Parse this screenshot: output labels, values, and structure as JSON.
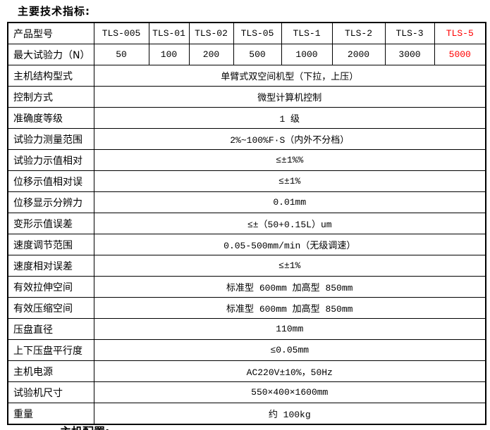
{
  "page": {
    "title": "主要技术指标:",
    "cutoff_heading": "主机配置:"
  },
  "colors": {
    "background": "#ffffff",
    "text": "#000000",
    "border": "#000000",
    "highlight_red": "#ff0000"
  },
  "table": {
    "model_row": {
      "label": "产品型号",
      "values": [
        "TLS-005",
        "TLS-01",
        "TLS-02",
        "TLS-05",
        "TLS-1",
        "TLS-2",
        "TLS-3",
        "TLS-5"
      ],
      "highlight_index": 7
    },
    "force_row": {
      "label": "最大试验力（N）",
      "values": [
        "50",
        "100",
        "200",
        "500",
        "1000",
        "2000",
        "3000",
        "5000"
      ],
      "highlight_index": 7
    },
    "spec_rows": [
      {
        "label": "主机结构型式",
        "value": "单臂式双空间机型（下拉，上压）"
      },
      {
        "label": "控制方式",
        "value": "微型计算机控制"
      },
      {
        "label": "准确度等级",
        "value": "1 级"
      },
      {
        "label": "试验力测量范围",
        "value": "2%~100%F·S（内外不分档）"
      },
      {
        "label": "试验力示值相对",
        "value": "≤±1%%"
      },
      {
        "label": "位移示值相对误",
        "value": "≤±1%"
      },
      {
        "label": "位移显示分辨力",
        "value": "0.01mm"
      },
      {
        "label": "变形示值误差",
        "value": "≤±（50+0.15L）um"
      },
      {
        "label": "速度调节范围",
        "value": "0.05-500mm/min（无级调速）"
      },
      {
        "label": "速度相对误差",
        "value": "≤±1%"
      },
      {
        "label": "有效拉伸空间",
        "value": "标准型 600mm 加高型 850mm"
      },
      {
        "label": "有效压缩空间",
        "value": "标准型 600mm 加高型 850mm"
      },
      {
        "label": "压盘直径",
        "value": "110mm"
      },
      {
        "label": "上下压盘平行度",
        "value": "≤0.05mm"
      },
      {
        "label": "主机电源",
        "value": "AC220V±10%，50Hz"
      },
      {
        "label": "试验机尺寸",
        "value": "550×400×1600mm"
      },
      {
        "label": "重量",
        "value": "约 100kg"
      }
    ]
  }
}
